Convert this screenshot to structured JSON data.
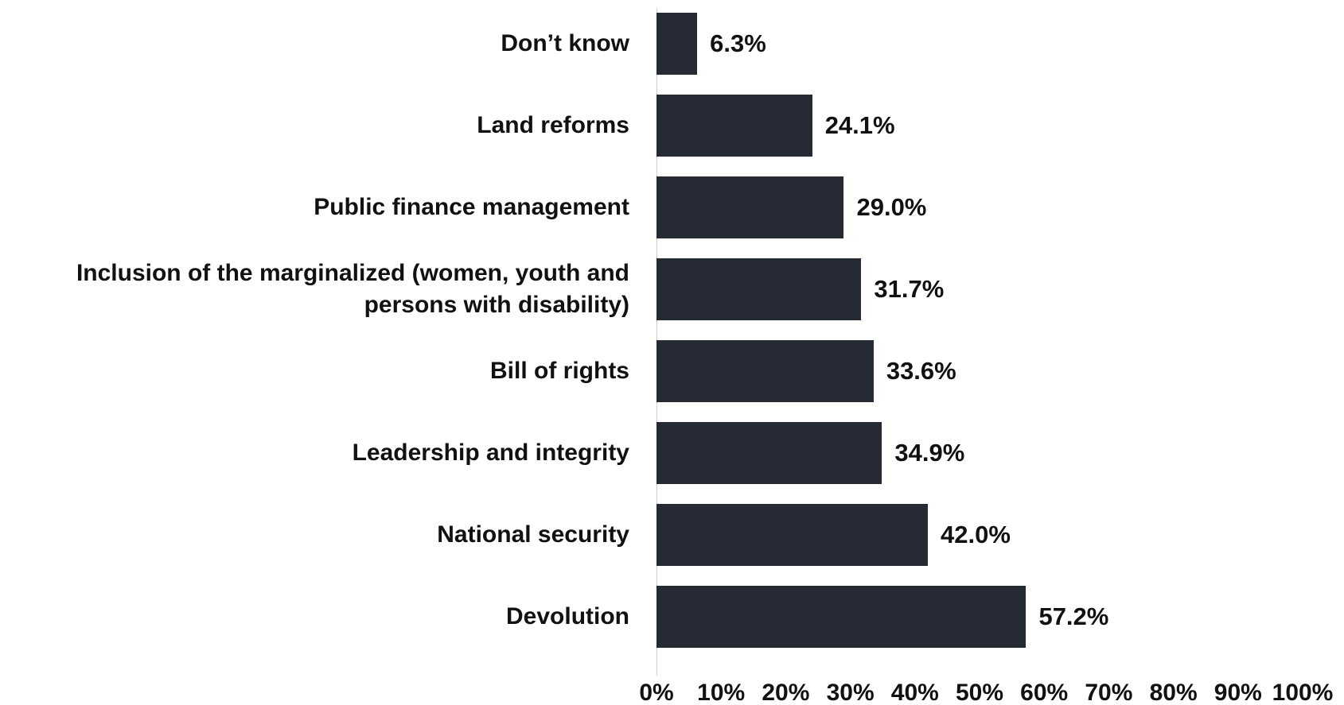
{
  "chart_data": {
    "type": "bar",
    "orientation": "horizontal",
    "categories": [
      "Don’t know",
      "Land reforms",
      "Public finance management",
      "Inclusion of the marginalized (women, youth and persons with disability)",
      "Bill of rights",
      "Leadership and integrity",
      "National security",
      "Devolution"
    ],
    "values": [
      6.3,
      24.1,
      29.0,
      31.7,
      33.6,
      34.9,
      42.0,
      57.2
    ],
    "value_labels": [
      "6.3%",
      "24.1%",
      "29.0%",
      "31.7%",
      "33.6%",
      "34.9%",
      "42.0%",
      "57.2%"
    ],
    "color": "#252a35",
    "xlim": [
      0,
      100
    ],
    "xticks": [
      {
        "value": 0,
        "label": "0%"
      },
      {
        "value": 10,
        "label": "10%"
      },
      {
        "value": 20,
        "label": "20%"
      },
      {
        "value": 30,
        "label": "30%"
      },
      {
        "value": 40,
        "label": "40%"
      },
      {
        "value": 50,
        "label": "50%"
      },
      {
        "value": 60,
        "label": "60%"
      },
      {
        "value": 70,
        "label": "70%"
      },
      {
        "value": 80,
        "label": "80%"
      },
      {
        "value": 90,
        "label": "90%"
      },
      {
        "value": 100,
        "label": "100%"
      }
    ]
  }
}
